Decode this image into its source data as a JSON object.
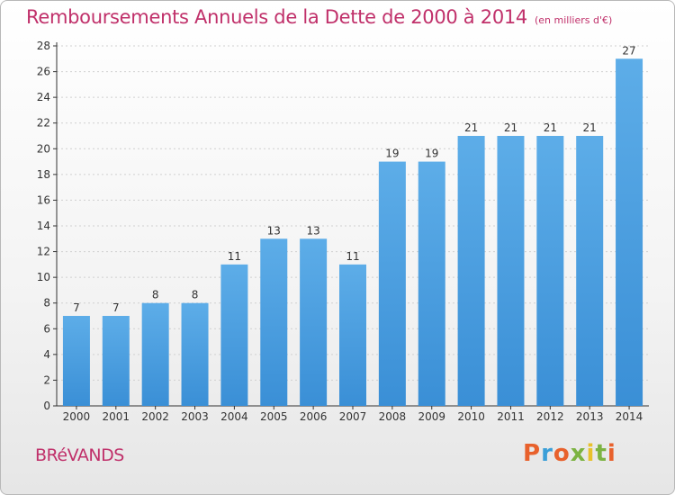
{
  "chart_data": {
    "type": "bar",
    "title": "Remboursements Annuels de la Dette de 2000 à 2014",
    "unit_label": "(en milliers d'€)",
    "xlabel": "",
    "ylabel": "",
    "categories": [
      "2000",
      "2001",
      "2002",
      "2003",
      "2004",
      "2005",
      "2006",
      "2007",
      "2008",
      "2009",
      "2010",
      "2011",
      "2012",
      "2013",
      "2014"
    ],
    "values": [
      7,
      7,
      8,
      8,
      11,
      13,
      13,
      11,
      19,
      19,
      21,
      21,
      21,
      21,
      27
    ],
    "ylim": [
      0,
      28
    ],
    "yticks": [
      0,
      2,
      4,
      6,
      8,
      10,
      12,
      14,
      16,
      18,
      20,
      22,
      24,
      26,
      28
    ],
    "grid": true,
    "bar_color": "#3a8fd6",
    "bar_color_light": "#5dade8"
  },
  "commune_name": "BRéVANDS",
  "logo": {
    "text": "Proxiti",
    "colors": [
      "#e8612c",
      "#3a9fd8",
      "#e8612c",
      "#7cb342",
      "#e8c12c",
      "#7cb342",
      "#e8612c"
    ]
  },
  "colors": {
    "title": "#c0306a",
    "axis": "#333333",
    "grid": "#d0d0d0"
  }
}
